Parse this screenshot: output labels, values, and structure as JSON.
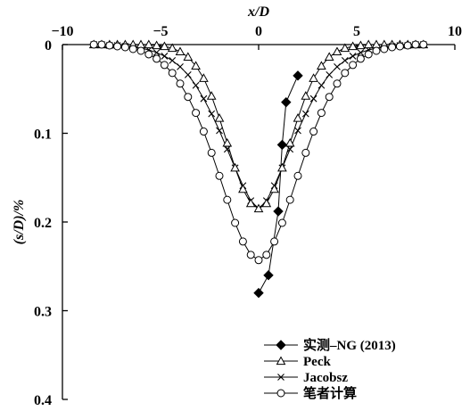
{
  "chart_data": {
    "type": "line",
    "xlabel": "x/D",
    "ylabel": "(s/D)/%",
    "xlim": [
      -10,
      10
    ],
    "ylim": [
      0,
      0.4
    ],
    "y_axis_inverted": true,
    "x_axis_position": "top",
    "x_ticks": [
      -10,
      -5,
      0,
      5,
      10
    ],
    "x_tick_labels": [
      "−10",
      "−5",
      "0",
      "5",
      "10"
    ],
    "y_ticks": [
      0,
      0.1,
      0.2,
      0.3,
      0.4
    ],
    "y_tick_labels": [
      "0",
      "0.1",
      "0.2",
      "0.3",
      "0.4"
    ],
    "grid": false,
    "legend_position": "bottom-right",
    "series": [
      {
        "name": "实测–NG (2013)",
        "marker": "filled-diamond",
        "x": [
          0.0,
          0.5,
          1.0,
          1.2,
          1.4,
          2.0
        ],
        "y": [
          0.28,
          0.26,
          0.188,
          0.113,
          0.065,
          0.035
        ]
      },
      {
        "name": "Peck",
        "marker": "open-triangle",
        "x": [
          -8.4,
          -8.0,
          -7.6,
          -7.2,
          -6.8,
          -6.4,
          -6.0,
          -5.6,
          -5.2,
          -4.8,
          -4.4,
          -4.0,
          -3.6,
          -3.2,
          -2.8,
          -2.4,
          -2.0,
          -1.6,
          -1.2,
          -0.8,
          -0.4,
          0.0,
          0.4,
          0.8,
          1.2,
          1.6,
          2.0,
          2.4,
          2.8,
          3.2,
          3.6,
          4.0,
          4.4,
          4.8,
          5.2,
          5.6,
          6.0,
          6.4,
          6.8,
          7.2,
          7.6,
          8.0,
          8.4
        ],
        "y": [
          0.0,
          0.0,
          0.0,
          0.0,
          0.0,
          0.0,
          0.0,
          0.0,
          0.001,
          0.002,
          0.004,
          0.008,
          0.014,
          0.024,
          0.038,
          0.058,
          0.083,
          0.111,
          0.139,
          0.163,
          0.179,
          0.185,
          0.179,
          0.163,
          0.139,
          0.111,
          0.083,
          0.058,
          0.038,
          0.024,
          0.014,
          0.008,
          0.004,
          0.002,
          0.001,
          0.0,
          0.0,
          0.0,
          0.0,
          0.0,
          0.0,
          0.0,
          0.0
        ]
      },
      {
        "name": "Jacobsz",
        "marker": "x",
        "x": [
          -8.4,
          -8.0,
          -7.6,
          -7.2,
          -6.8,
          -6.4,
          -6.0,
          -5.6,
          -5.2,
          -4.8,
          -4.4,
          -4.0,
          -3.6,
          -3.2,
          -2.8,
          -2.4,
          -2.0,
          -1.6,
          -1.2,
          -0.8,
          -0.4,
          0.0,
          0.4,
          0.8,
          1.2,
          1.6,
          2.0,
          2.4,
          2.8,
          3.2,
          3.6,
          4.0,
          4.4,
          4.8,
          5.2,
          5.6,
          6.0,
          6.4,
          6.8,
          7.2,
          7.6,
          8.0,
          8.4
        ],
        "y": [
          0.0,
          0.0,
          0.001,
          0.001,
          0.002,
          0.003,
          0.004,
          0.006,
          0.009,
          0.013,
          0.018,
          0.025,
          0.034,
          0.046,
          0.061,
          0.078,
          0.097,
          0.118,
          0.139,
          0.159,
          0.176,
          0.185,
          0.176,
          0.159,
          0.139,
          0.118,
          0.097,
          0.078,
          0.061,
          0.046,
          0.034,
          0.025,
          0.018,
          0.013,
          0.009,
          0.006,
          0.004,
          0.003,
          0.002,
          0.001,
          0.001,
          0.0,
          0.0
        ]
      },
      {
        "name": "笔者计算",
        "marker": "open-circle",
        "x": [
          -8.4,
          -8.0,
          -7.6,
          -7.2,
          -6.8,
          -6.4,
          -6.0,
          -5.6,
          -5.2,
          -4.8,
          -4.4,
          -4.0,
          -3.6,
          -3.2,
          -2.8,
          -2.4,
          -2.0,
          -1.6,
          -1.2,
          -0.8,
          -0.4,
          0.0,
          0.4,
          0.8,
          1.2,
          1.6,
          2.0,
          2.4,
          2.8,
          3.2,
          3.6,
          4.0,
          4.4,
          4.8,
          5.2,
          5.6,
          6.0,
          6.4,
          6.8,
          7.2,
          7.6,
          8.0,
          8.4
        ],
        "y": [
          0.0,
          0.0,
          0.001,
          0.002,
          0.003,
          0.005,
          0.007,
          0.011,
          0.016,
          0.023,
          0.032,
          0.044,
          0.059,
          0.077,
          0.098,
          0.122,
          0.148,
          0.175,
          0.201,
          0.222,
          0.237,
          0.243,
          0.237,
          0.222,
          0.201,
          0.175,
          0.148,
          0.122,
          0.098,
          0.077,
          0.059,
          0.044,
          0.032,
          0.023,
          0.016,
          0.011,
          0.007,
          0.005,
          0.003,
          0.002,
          0.001,
          0.0,
          0.0
        ]
      }
    ]
  }
}
